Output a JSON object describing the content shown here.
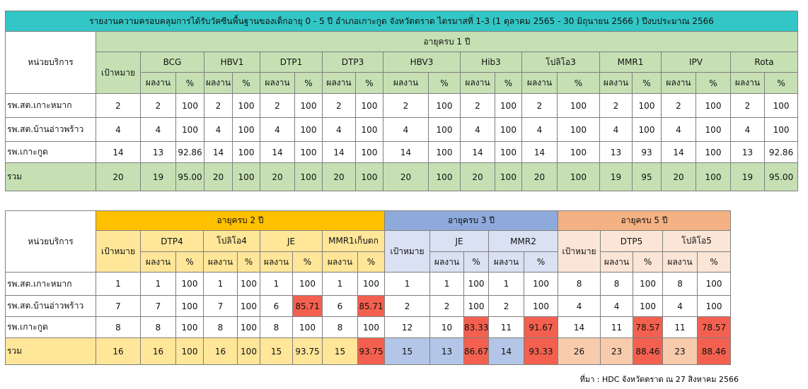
{
  "table1": {
    "title": "รายงานความครอบคลุมการได้รับวัคซีนพื้นฐานของเด็กอายุ 0 - 5 ปี อำเภอเกาะกูด จังหวัดตราด ไตรมาสที่ 1-3 (1 ตุลาคม 2565 - 30 มิถุนายน 2566 ) ปีงบประมาณ 2566",
    "unit_header": "หน่วยบริการ",
    "age_group": "อายุครบ 1 ปี",
    "target_header": "เป้าหมาย",
    "vaccines": [
      "BCG",
      "HBV1",
      "DTP1",
      "DTP3",
      "HBV3",
      "Hib3",
      "โปลิโอ3",
      "MMR1",
      "IPV",
      "Rota"
    ],
    "sub_headers": [
      "ผลงาน",
      "%"
    ],
    "rows": [
      {
        "unit": "รพ.สต.เกาะหมาก",
        "target": "2",
        "cells": [
          [
            "2",
            "100"
          ],
          [
            "2",
            "100"
          ],
          [
            "2",
            "100"
          ],
          [
            "2",
            "100"
          ],
          [
            "2",
            "100"
          ],
          [
            "2",
            "100"
          ],
          [
            "2",
            "100"
          ],
          [
            "2",
            "100"
          ],
          [
            "2",
            "100"
          ],
          [
            "2",
            "100"
          ]
        ]
      },
      {
        "unit": "รพ.สต.บ้านอ่าวพร้าว",
        "target": "4",
        "cells": [
          [
            "4",
            "100"
          ],
          [
            "4",
            "100"
          ],
          [
            "4",
            "100"
          ],
          [
            "4",
            "100"
          ],
          [
            "4",
            "100"
          ],
          [
            "4",
            "100"
          ],
          [
            "4",
            "100"
          ],
          [
            "4",
            "100"
          ],
          [
            "4",
            "100"
          ],
          [
            "4",
            "100"
          ]
        ]
      },
      {
        "unit": "รพ.เกาะกูด",
        "target": "14",
        "cells": [
          [
            "13",
            "92.86"
          ],
          [
            "14",
            "100"
          ],
          [
            "14",
            "100"
          ],
          [
            "14",
            "100"
          ],
          [
            "14",
            "100"
          ],
          [
            "14",
            "100"
          ],
          [
            "14",
            "100"
          ],
          [
            "13",
            "93"
          ],
          [
            "14",
            "100"
          ],
          [
            "13",
            "92.86"
          ]
        ]
      },
      {
        "unit": "รวม",
        "target": "20",
        "cells": [
          [
            "19",
            "95.00"
          ],
          [
            "20",
            "100"
          ],
          [
            "20",
            "100"
          ],
          [
            "20",
            "100"
          ],
          [
            "20",
            "100"
          ],
          [
            "20",
            "100"
          ],
          [
            "20",
            "100"
          ],
          [
            "19",
            "95"
          ],
          [
            "20",
            "100"
          ],
          [
            "19",
            "95.00"
          ]
        ]
      }
    ]
  },
  "table2": {
    "unit_header": "หน่วยบริการ",
    "sub_headers": [
      "ผลงาน",
      "%"
    ],
    "groups": [
      {
        "name": "อายุครบ 2 ปี",
        "target_header": "เป้าหมาย",
        "vaccines": [
          "DTP4",
          "โปลิโอ4",
          "JE",
          "MMR1เก็บตก"
        ]
      },
      {
        "name": "อายุครบ 3 ปี",
        "target_header": "เป้าหมาย",
        "vaccines": [
          "JE",
          "MMR2"
        ]
      },
      {
        "name": "อายุครบ 5 ปี",
        "target_header": "เป้าหมาย",
        "vaccines": [
          "DTP5",
          "โปลิโอ5"
        ]
      }
    ],
    "rows": [
      {
        "unit": "รพ.สต.เกาะหมาก",
        "groups": [
          {
            "target": "1",
            "cells": [
              [
                "1",
                "100"
              ],
              [
                "1",
                "100"
              ],
              [
                "1",
                "100"
              ],
              [
                "1",
                "100"
              ]
            ]
          },
          {
            "target": "1",
            "cells": [
              [
                "1",
                "100"
              ],
              [
                "1",
                "100"
              ]
            ]
          },
          {
            "target": "8",
            "cells": [
              [
                "8",
                "100"
              ],
              [
                "8",
                "100"
              ]
            ]
          }
        ]
      },
      {
        "unit": "รพ.สต.บ้านอ่าวพร้าว",
        "groups": [
          {
            "target": "7",
            "cells": [
              [
                "7",
                "100"
              ],
              [
                "7",
                "100"
              ],
              [
                "6",
                "85.71"
              ],
              [
                "6",
                "85.71"
              ]
            ]
          },
          {
            "target": "2",
            "cells": [
              [
                "2",
                "100"
              ],
              [
                "2",
                "100"
              ]
            ]
          },
          {
            "target": "4",
            "cells": [
              [
                "4",
                "100"
              ],
              [
                "4",
                "100"
              ]
            ]
          }
        ]
      },
      {
        "unit": "รพ.เกาะกูด",
        "groups": [
          {
            "target": "8",
            "cells": [
              [
                "8",
                "100"
              ],
              [
                "8",
                "100"
              ],
              [
                "8",
                "100"
              ],
              [
                "8",
                "100"
              ]
            ]
          },
          {
            "target": "12",
            "cells": [
              [
                "10",
                "83.33"
              ],
              [
                "11",
                "91.67"
              ]
            ]
          },
          {
            "target": "14",
            "cells": [
              [
                "11",
                "78.57"
              ],
              [
                "11",
                "78.57"
              ]
            ]
          }
        ]
      },
      {
        "unit": "รวม",
        "groups": [
          {
            "target": "16",
            "cells": [
              [
                "16",
                "100"
              ],
              [
                "16",
                "100"
              ],
              [
                "15",
                "93.75"
              ],
              [
                "15",
                "93.75"
              ]
            ]
          },
          {
            "target": "15",
            "cells": [
              [
                "13",
                "86.67"
              ],
              [
                "14",
                "93.33"
              ]
            ]
          },
          {
            "target": "26",
            "cells": [
              [
                "23",
                "88.46"
              ],
              [
                "23",
                "88.46"
              ]
            ]
          }
        ]
      }
    ]
  },
  "source": "ที่มา : HDC จังหวัดตราด ณ 27 สิงหาคม 2566"
}
